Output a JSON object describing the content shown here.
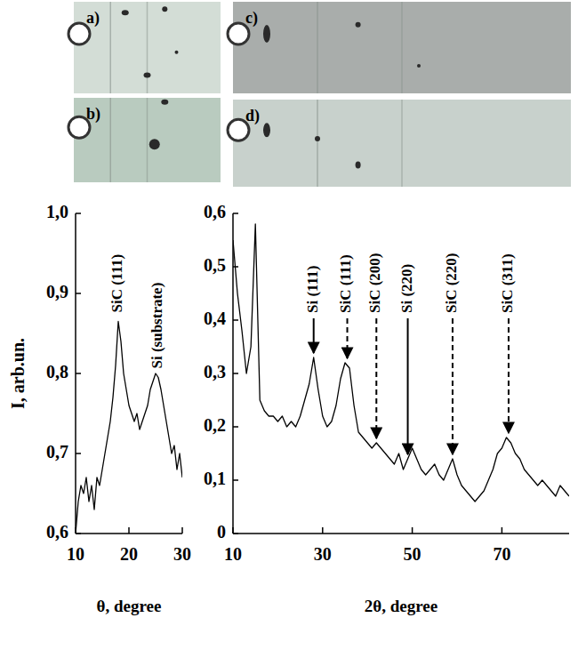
{
  "images": [
    {
      "label": "a)"
    },
    {
      "label": "b)"
    },
    {
      "label": "c)"
    },
    {
      "label": "d)"
    }
  ],
  "chart_data": [
    {
      "type": "line",
      "color": "#000000",
      "xlabel": "θ, degree",
      "ylabel": "I, arb.un.",
      "xlim": [
        10,
        30
      ],
      "xticks": [
        10,
        20,
        30
      ],
      "ylim": [
        0.6,
        1.0
      ],
      "yticks": [
        {
          "value": 0.6,
          "label": "0,6"
        },
        {
          "value": 0.7,
          "label": "0,7"
        },
        {
          "value": 0.8,
          "label": "0,8"
        },
        {
          "value": 0.9,
          "label": "0,9"
        },
        {
          "value": 1.0,
          "label": "1,0"
        }
      ],
      "x": [
        10,
        10.5,
        11,
        11.5,
        12,
        12.5,
        13,
        13.5,
        14,
        14.5,
        15,
        15.5,
        16,
        16.5,
        17,
        17.5,
        18,
        18.5,
        19,
        19.5,
        20,
        20.5,
        21,
        21.5,
        22,
        22.5,
        23,
        23.5,
        24,
        24.5,
        25,
        25.5,
        26,
        26.5,
        27,
        27.5,
        28,
        28.5,
        29,
        29.5,
        30
      ],
      "values": [
        0.6,
        0.64,
        0.66,
        0.65,
        0.67,
        0.64,
        0.66,
        0.63,
        0.67,
        0.66,
        0.68,
        0.7,
        0.72,
        0.74,
        0.77,
        0.81,
        0.865,
        0.84,
        0.8,
        0.78,
        0.76,
        0.75,
        0.74,
        0.75,
        0.73,
        0.74,
        0.75,
        0.76,
        0.78,
        0.79,
        0.8,
        0.795,
        0.78,
        0.76,
        0.74,
        0.72,
        0.7,
        0.71,
        0.68,
        0.7,
        0.67
      ],
      "annotations": [
        {
          "text": "SiC (111)",
          "x": 18
        },
        {
          "text": "Si (substrate)",
          "x": 25.5
        }
      ]
    },
    {
      "type": "line",
      "color": "#000000",
      "xlabel": "2θ, degree",
      "xlim": [
        10,
        85
      ],
      "xticks": [
        10,
        30,
        50,
        70
      ],
      "ylim": [
        0,
        0.6
      ],
      "yticks": [
        0,
        {
          "value": 0.1,
          "label": "0,1"
        },
        {
          "value": 0.2,
          "label": "0,2"
        },
        {
          "value": 0.3,
          "label": "0,3"
        },
        {
          "value": 0.4,
          "label": "0,4"
        },
        {
          "value": 0.5,
          "label": "0,5"
        },
        {
          "value": 0.6,
          "label": "0,6"
        }
      ],
      "x": [
        10,
        11,
        12,
        13,
        14,
        15,
        16,
        17,
        18,
        19,
        20,
        21,
        22,
        23,
        24,
        25,
        26,
        27,
        28,
        29,
        30,
        31,
        32,
        33,
        34,
        35,
        36,
        37,
        38,
        39,
        40,
        41,
        42,
        43,
        44,
        45,
        46,
        47,
        48,
        49,
        50,
        51,
        52,
        53,
        54,
        55,
        56,
        57,
        58,
        59,
        60,
        61,
        62,
        63,
        64,
        65,
        66,
        67,
        68,
        69,
        70,
        71,
        72,
        73,
        74,
        75,
        76,
        77,
        78,
        79,
        80,
        81,
        82,
        83,
        84,
        85
      ],
      "values": [
        0.55,
        0.45,
        0.38,
        0.3,
        0.35,
        0.58,
        0.25,
        0.23,
        0.22,
        0.22,
        0.21,
        0.22,
        0.2,
        0.21,
        0.2,
        0.22,
        0.25,
        0.28,
        0.33,
        0.27,
        0.22,
        0.2,
        0.21,
        0.24,
        0.29,
        0.32,
        0.31,
        0.24,
        0.19,
        0.18,
        0.17,
        0.16,
        0.17,
        0.16,
        0.15,
        0.14,
        0.13,
        0.15,
        0.12,
        0.14,
        0.16,
        0.14,
        0.12,
        0.11,
        0.12,
        0.13,
        0.11,
        0.1,
        0.12,
        0.14,
        0.11,
        0.09,
        0.08,
        0.07,
        0.06,
        0.07,
        0.08,
        0.1,
        0.12,
        0.15,
        0.16,
        0.18,
        0.17,
        0.15,
        0.14,
        0.12,
        0.11,
        0.1,
        0.09,
        0.1,
        0.09,
        0.08,
        0.07,
        0.09,
        0.08,
        0.07
      ],
      "annotations": [
        {
          "text": "Si (111)",
          "x": 28,
          "line_style": "solid"
        },
        {
          "text": "SiC (111)",
          "x": 35.5,
          "line_style": "dashed"
        },
        {
          "text": "SiC (200)",
          "x": 42,
          "line_style": "dashed"
        },
        {
          "text": "Si (220)",
          "x": 49,
          "line_style": "solid"
        },
        {
          "text": "SiC (220)",
          "x": 59,
          "line_style": "dashed"
        },
        {
          "text": "SiC (311)",
          "x": 71.5,
          "line_style": "dashed"
        }
      ]
    }
  ]
}
